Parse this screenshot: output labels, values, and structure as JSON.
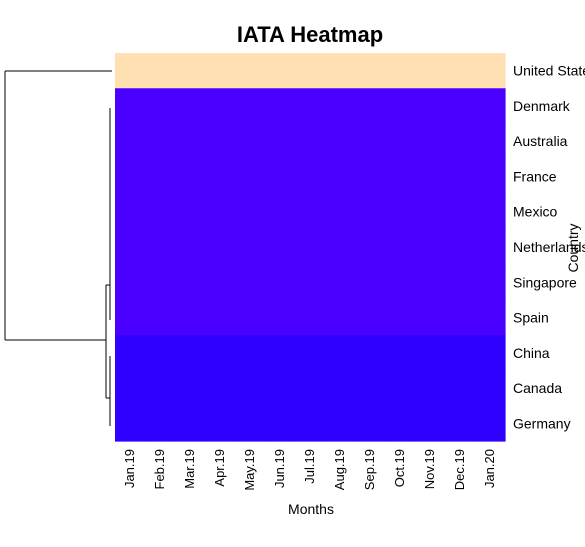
{
  "chart_data": {
    "type": "heatmap",
    "title": "IATA Heatmap",
    "xlabel": "Months",
    "ylabel": "Country",
    "columns": [
      "Jan.19",
      "Feb.19",
      "Mar.19",
      "Apr.19",
      "May.19",
      "Jun.19",
      "Jul.19",
      "Aug.19",
      "Sep.19",
      "Oct.19",
      "Nov.19",
      "Dec.19",
      "Jan.20"
    ],
    "rows": [
      "United States",
      "Denmark",
      "Australia",
      "France",
      "Mexico",
      "Netherlands",
      "Singapore",
      "Spain",
      "China",
      "Canada",
      "Germany"
    ],
    "cell_colors": [
      "#ffe0b2",
      "#4a00ff",
      "#4a00ff",
      "#4a00ff",
      "#4a00ff",
      "#4a00ff",
      "#4a00ff",
      "#4a00ff",
      "#2f00ff",
      "#2f00ff",
      "#2f00ff"
    ],
    "row_dendrogram": true,
    "legend": "none"
  }
}
